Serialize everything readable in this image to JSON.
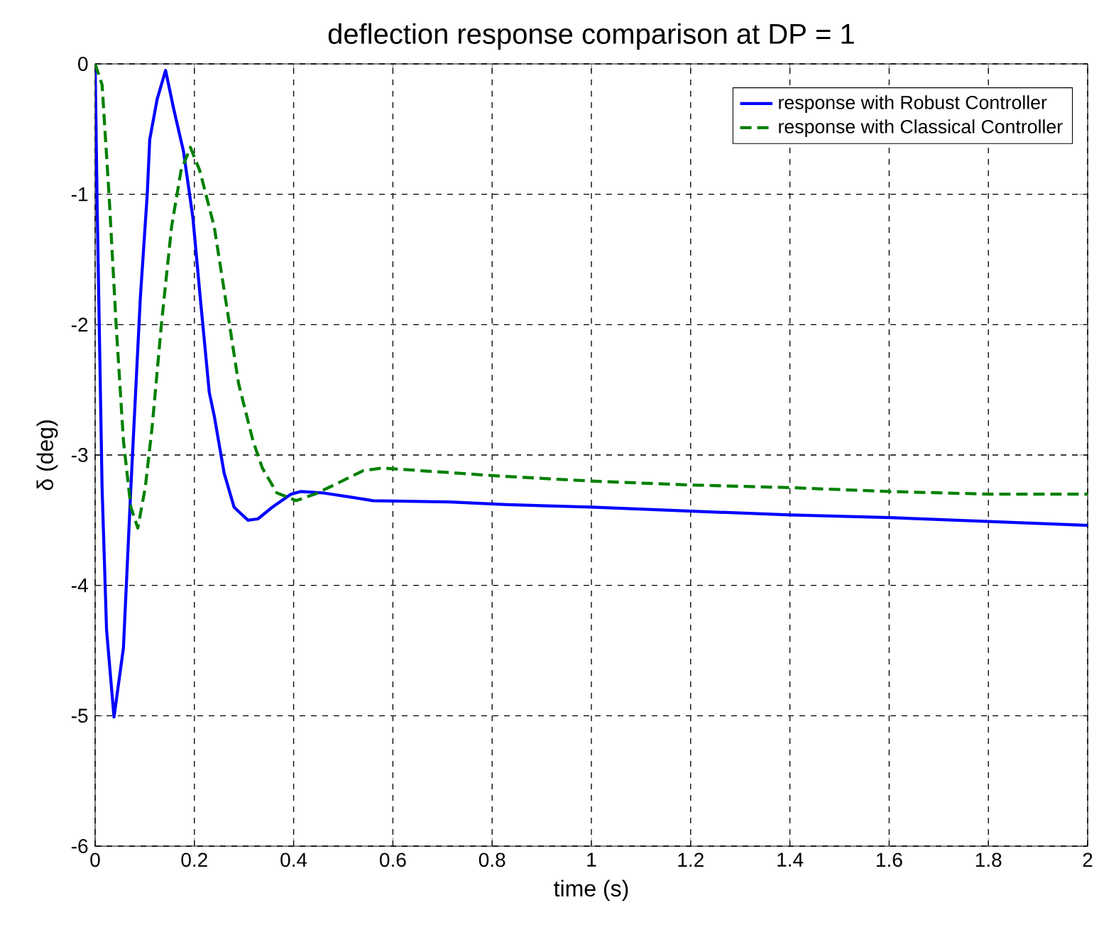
{
  "chart_data": {
    "type": "line",
    "title": "deflection response comparison at DP = 1",
    "xlabel": "time (s)",
    "ylabel": "δ (deg)",
    "xlim": [
      0,
      2
    ],
    "ylim": [
      -6,
      0
    ],
    "xticks": [
      0,
      0.2,
      0.4,
      0.6,
      0.8,
      1,
      1.2,
      1.4,
      1.6,
      1.8,
      2
    ],
    "yticks": [
      -6,
      -5,
      -4,
      -3,
      -2,
      -1,
      0
    ],
    "grid": true,
    "legend": "top right",
    "series": [
      {
        "name": "response with Robust Controller",
        "color": "#0000ff",
        "line_style": "solid",
        "x": [
          0,
          0.004,
          0.014,
          0.023,
          0.038,
          0.057,
          0.072,
          0.091,
          0.105,
          0.11,
          0.125,
          0.142,
          0.158,
          0.178,
          0.197,
          0.212,
          0.23,
          0.24,
          0.26,
          0.28,
          0.308,
          0.328,
          0.357,
          0.395,
          0.414,
          0.458,
          0.511,
          0.56,
          0.714,
          0.83,
          1.0,
          1.2,
          1.4,
          1.6,
          1.8,
          2.0
        ],
        "values": [
          0,
          -1.07,
          -3.25,
          -4.34,
          -5.01,
          -4.48,
          -3.25,
          -1.8,
          -1.0,
          -0.58,
          -0.27,
          -0.05,
          -0.34,
          -0.67,
          -1.18,
          -1.8,
          -2.52,
          -2.7,
          -3.14,
          -3.4,
          -3.5,
          -3.49,
          -3.4,
          -3.3,
          -3.28,
          -3.29,
          -3.32,
          -3.35,
          -3.36,
          -3.38,
          -3.4,
          -3.43,
          -3.46,
          -3.48,
          -3.51,
          -3.54
        ]
      },
      {
        "name": "response with Classical Controller",
        "color": "#008000",
        "line_style": "dashed",
        "x": [
          0,
          0.014,
          0.028,
          0.042,
          0.057,
          0.072,
          0.086,
          0.101,
          0.115,
          0.134,
          0.154,
          0.173,
          0.192,
          0.211,
          0.24,
          0.27,
          0.289,
          0.318,
          0.337,
          0.366,
          0.405,
          0.443,
          0.492,
          0.54,
          0.579,
          0.656,
          0.733,
          0.81,
          1.0,
          1.2,
          1.4,
          1.6,
          1.8,
          2.0
        ],
        "values": [
          0,
          -0.16,
          -1.0,
          -1.98,
          -2.89,
          -3.4,
          -3.56,
          -3.25,
          -2.78,
          -1.98,
          -1.25,
          -0.82,
          -0.64,
          -0.82,
          -1.25,
          -1.98,
          -2.45,
          -2.89,
          -3.1,
          -3.29,
          -3.35,
          -3.3,
          -3.21,
          -3.12,
          -3.1,
          -3.12,
          -3.14,
          -3.16,
          -3.2,
          -3.23,
          -3.25,
          -3.28,
          -3.3,
          -3.3
        ]
      }
    ]
  }
}
